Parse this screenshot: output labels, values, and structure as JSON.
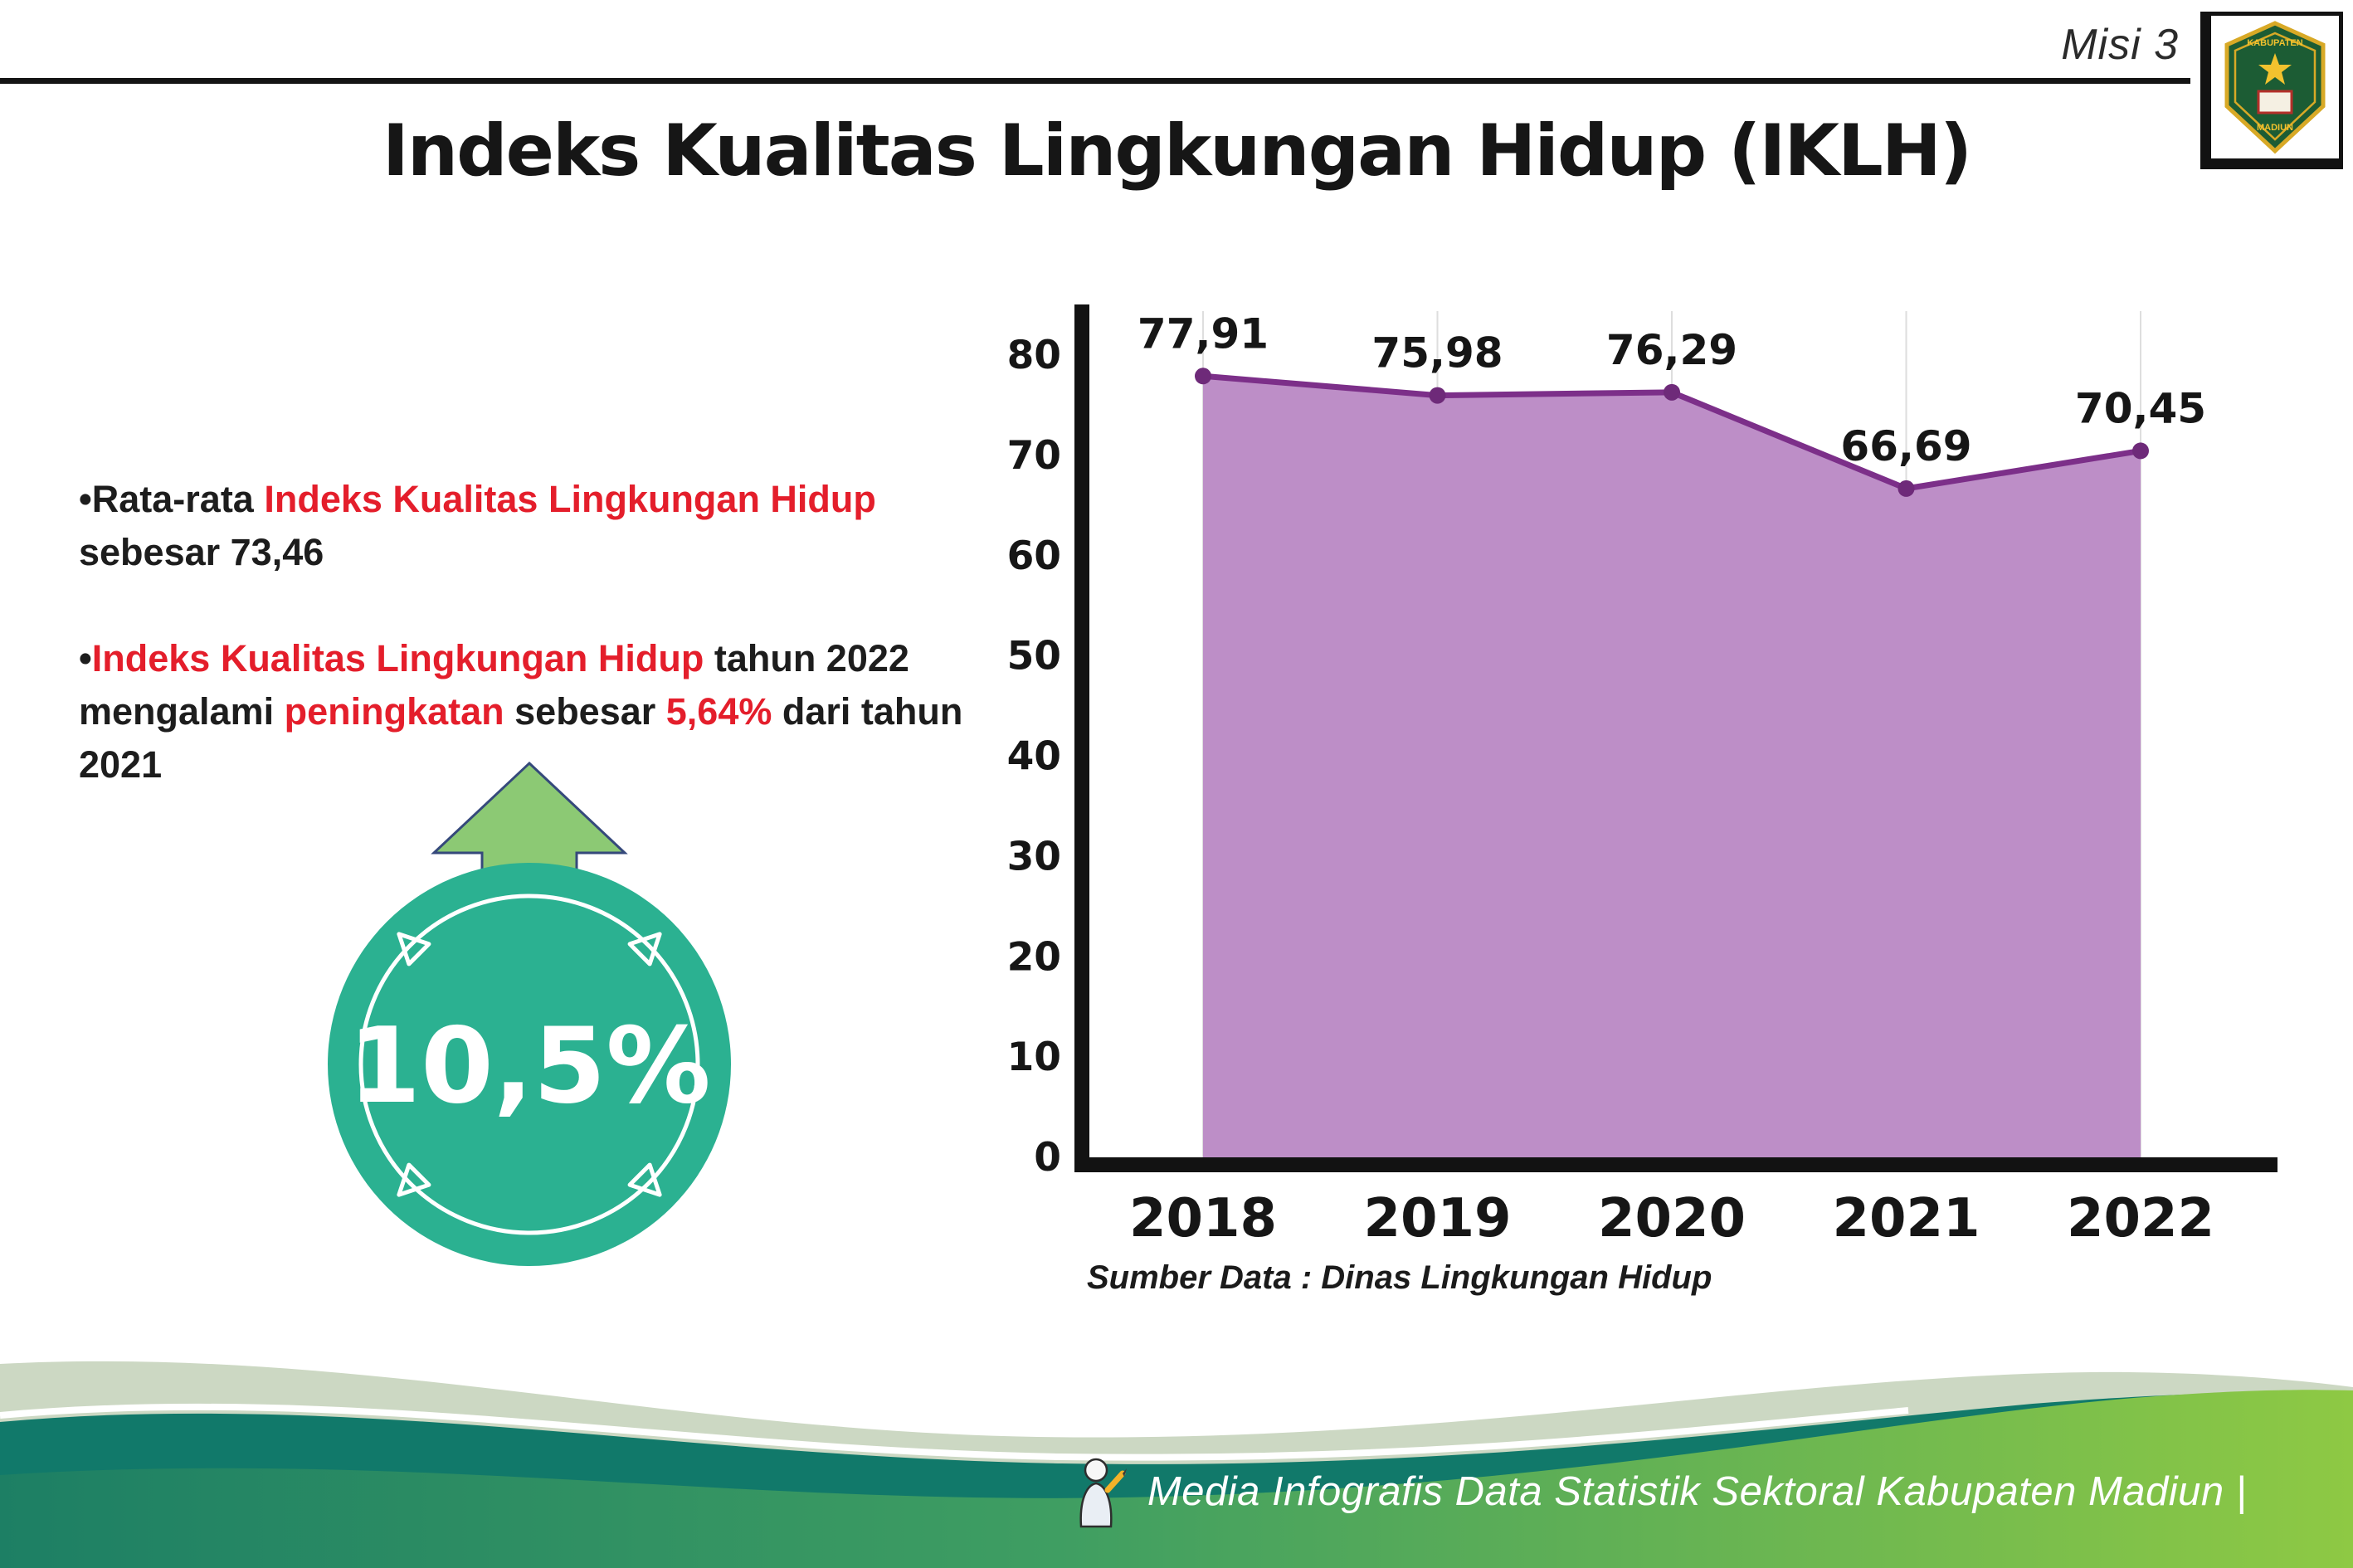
{
  "header": {
    "misi_label": "Misi 3",
    "title": "Indeks Kualitas Lingkungan Hidup (IKLH)",
    "logo": {
      "top_text": "KABUPATEN",
      "bottom_text": "MADIUN"
    }
  },
  "bullet1": {
    "marker": "•",
    "seg_black1": "Rata-rata ",
    "seg_red": "Indeks Kualitas Lingkungan Hidup",
    "seg_black2": " sebesar 73,46"
  },
  "bullet2": {
    "marker": "•",
    "seg_red1": "Indeks Kualitas Lingkungan Hidup",
    "seg_black1": " tahun 2022 mengalami ",
    "seg_red2": "peningkatan",
    "seg_black2": " sebesar ",
    "seg_red3": "5,64%",
    "seg_black3": " dari tahun 2021"
  },
  "badge": {
    "value": "10,5%",
    "circle_color": "#2bb191",
    "arrow_color": "#8cc974"
  },
  "chart_data": {
    "type": "area",
    "title": "",
    "categories": [
      "2018",
      "2019",
      "2020",
      "2021",
      "2022"
    ],
    "values": [
      77.91,
      75.98,
      76.29,
      66.69,
      70.45
    ],
    "value_labels": [
      "77,91",
      "75,98",
      "76,29",
      "66,69",
      "70,45"
    ],
    "xlabel": "",
    "ylabel": "",
    "ylim": [
      0,
      80
    ],
    "yticks": [
      0,
      10,
      20,
      30,
      40,
      50,
      60,
      70,
      80
    ],
    "grid": "vertical-light",
    "legend": "none",
    "area_color": "#bd8ec7",
    "line_color": "#7c2f89",
    "marker_color": "#6e2a79",
    "source_note": "Sumber Data : Dinas Lingkungan Hidup"
  },
  "footer": {
    "caption": "Media Infografis Data Statistik Sektoral Kabupaten Madiun |"
  }
}
